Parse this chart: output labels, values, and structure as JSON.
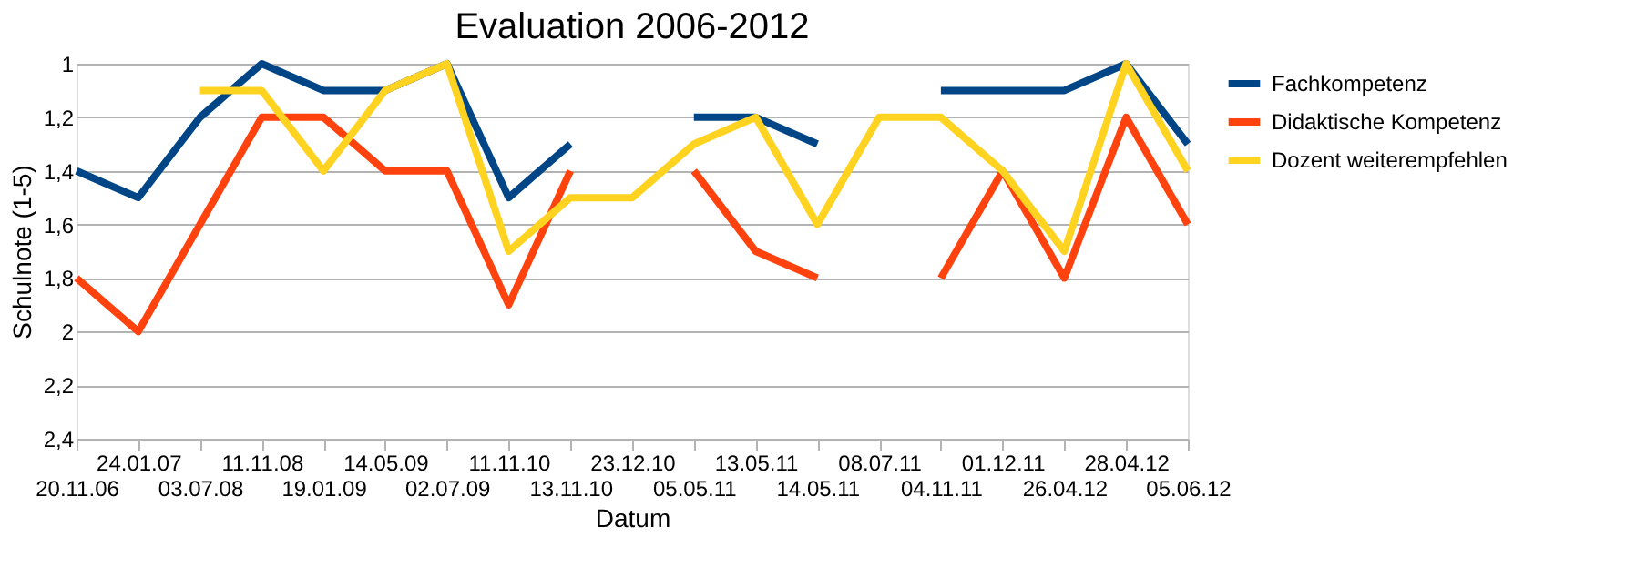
{
  "chart_data": {
    "type": "line",
    "title": "Evaluation 2006-2012",
    "xlabel": "Datum",
    "ylabel": "Schulnote (1-5)",
    "categories": [
      "20.11.06",
      "24.01.07",
      "03.07.08",
      "11.11.08",
      "19.01.09",
      "14.05.09",
      "02.07.09",
      "11.11.10",
      "13.11.10",
      "23.12.10",
      "05.05.11",
      "13.05.11",
      "14.05.11",
      "08.07.11",
      "04.11.11",
      "01.12.11",
      "26.04.12",
      "28.04.12",
      "05.06.12"
    ],
    "series": [
      {
        "name": "Fachkompetenz",
        "color": "#004586",
        "values": [
          1.4,
          1.5,
          1.2,
          1.0,
          1.1,
          1.1,
          1.0,
          1.5,
          1.3,
          null,
          1.2,
          1.2,
          1.3,
          null,
          1.1,
          1.1,
          1.1,
          1.0,
          1.3
        ]
      },
      {
        "name": "Didaktische Kompetenz",
        "color": "#ff420e",
        "values": [
          1.8,
          2.0,
          1.6,
          1.2,
          1.2,
          1.4,
          1.4,
          1.9,
          1.4,
          null,
          1.4,
          1.7,
          1.8,
          null,
          1.8,
          1.4,
          1.8,
          1.2,
          1.6
        ]
      },
      {
        "name": "Dozent weiterempfehlen",
        "color": "#ffd320",
        "values": [
          null,
          null,
          1.1,
          1.1,
          1.4,
          1.1,
          1.0,
          1.7,
          1.5,
          1.5,
          1.3,
          1.2,
          1.6,
          1.2,
          1.2,
          1.4,
          1.7,
          1.0,
          1.4
        ]
      }
    ],
    "ylim": [
      2.4,
      1
    ],
    "yticks": [
      1,
      {
        "value": 1.2,
        "label": "1,2"
      },
      {
        "value": 1.4,
        "label": "1,4"
      },
      {
        "value": 1.6,
        "label": "1,6"
      },
      {
        "value": 1.8,
        "label": "1,8"
      },
      2,
      {
        "value": 2.2,
        "label": "2,2"
      },
      {
        "value": 2.4,
        "label": "2,4"
      }
    ],
    "grid": "y",
    "legend": "right",
    "marker": "none",
    "line_style": "solid"
  }
}
